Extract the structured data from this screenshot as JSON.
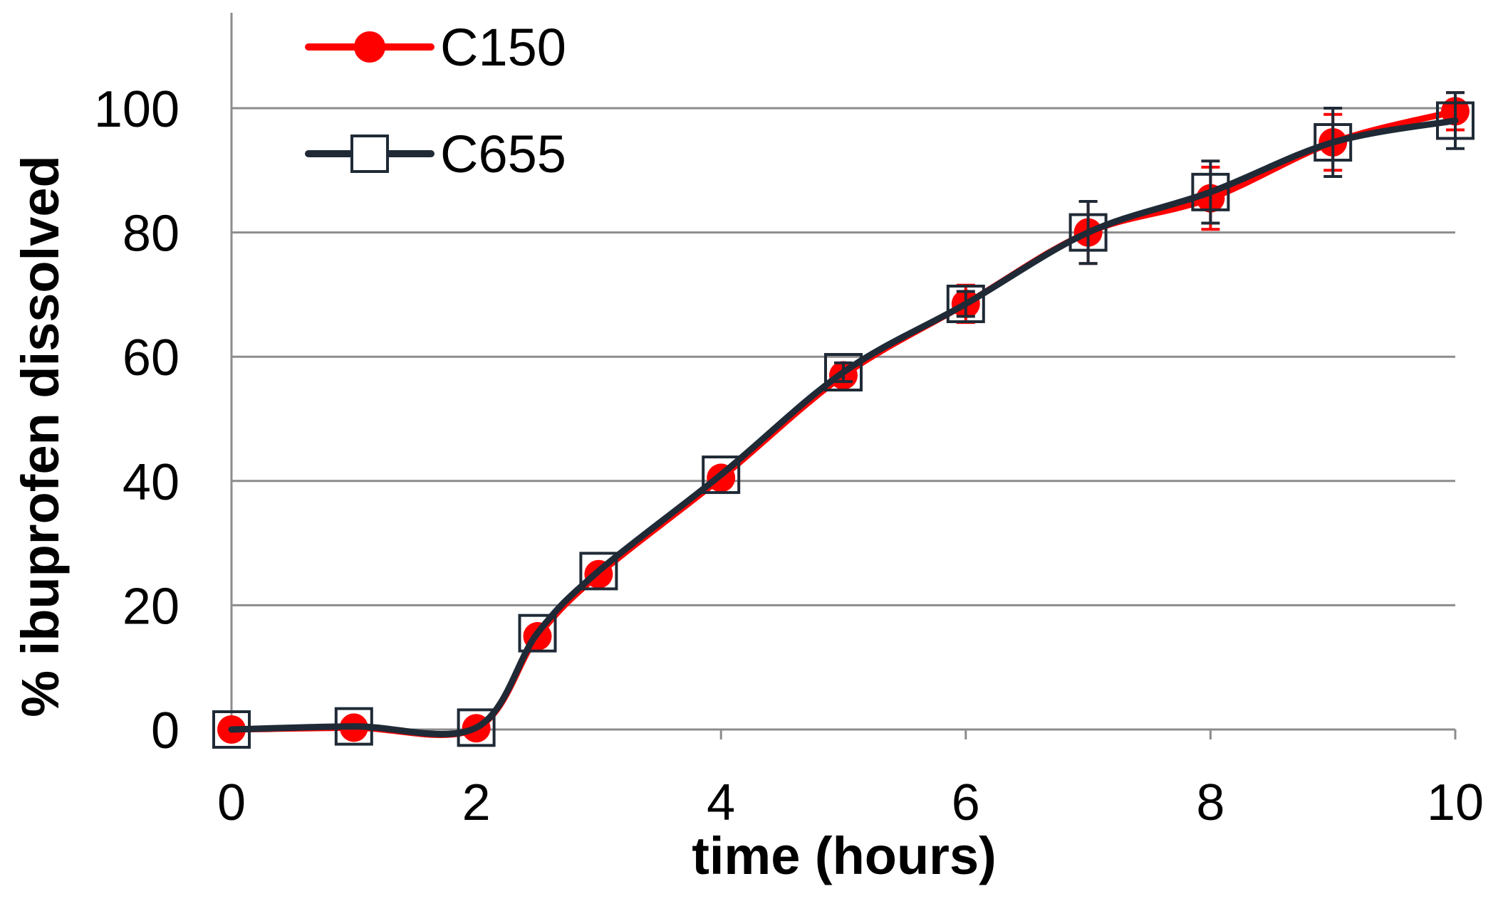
{
  "chart_data": {
    "type": "line",
    "xlabel": "time (hours)",
    "ylabel": "% ibuprofen dissolved",
    "xlim": [
      0,
      10
    ],
    "ylim": [
      0,
      100
    ],
    "x_ticks": [
      0,
      2,
      4,
      6,
      8,
      10
    ],
    "y_ticks": [
      0,
      20,
      40,
      60,
      80,
      100
    ],
    "grid": "horizontal",
    "legend_position": "top-left",
    "series": [
      {
        "name": "C150",
        "color": "#ff0000",
        "marker": "filled-circle",
        "points": [
          {
            "x": 0,
            "y": 0,
            "err": 0
          },
          {
            "x": 1,
            "y": 0.3,
            "err": 0
          },
          {
            "x": 2,
            "y": 0.2,
            "err": 0
          },
          {
            "x": 2.5,
            "y": 15,
            "err": 0
          },
          {
            "x": 3,
            "y": 25,
            "err": 0
          },
          {
            "x": 4,
            "y": 40.5,
            "err": 0
          },
          {
            "x": 5,
            "y": 57,
            "err": 1
          },
          {
            "x": 6,
            "y": 68.5,
            "err": 3
          },
          {
            "x": 7,
            "y": 80,
            "err": 5
          },
          {
            "x": 8,
            "y": 85.5,
            "err": 5
          },
          {
            "x": 9,
            "y": 94.5,
            "err": 4.5
          },
          {
            "x": 10,
            "y": 99.5,
            "err": 3
          }
        ]
      },
      {
        "name": "C655",
        "color": "#1f2a36",
        "marker": "open-square",
        "points": [
          {
            "x": 0,
            "y": 0,
            "err": 0
          },
          {
            "x": 1,
            "y": 0.5,
            "err": 0
          },
          {
            "x": 2,
            "y": 0.3,
            "err": 0
          },
          {
            "x": 2.5,
            "y": 15.5,
            "err": 0
          },
          {
            "x": 3,
            "y": 25.5,
            "err": 0
          },
          {
            "x": 4,
            "y": 41,
            "err": 0
          },
          {
            "x": 5,
            "y": 57.5,
            "err": 1.5
          },
          {
            "x": 6,
            "y": 68.5,
            "err": 2
          },
          {
            "x": 7,
            "y": 80,
            "err": 5
          },
          {
            "x": 8,
            "y": 86.5,
            "err": 5
          },
          {
            "x": 9,
            "y": 94.5,
            "err": 5.5
          },
          {
            "x": 10,
            "y": 98,
            "err": 4.5
          }
        ]
      }
    ]
  }
}
